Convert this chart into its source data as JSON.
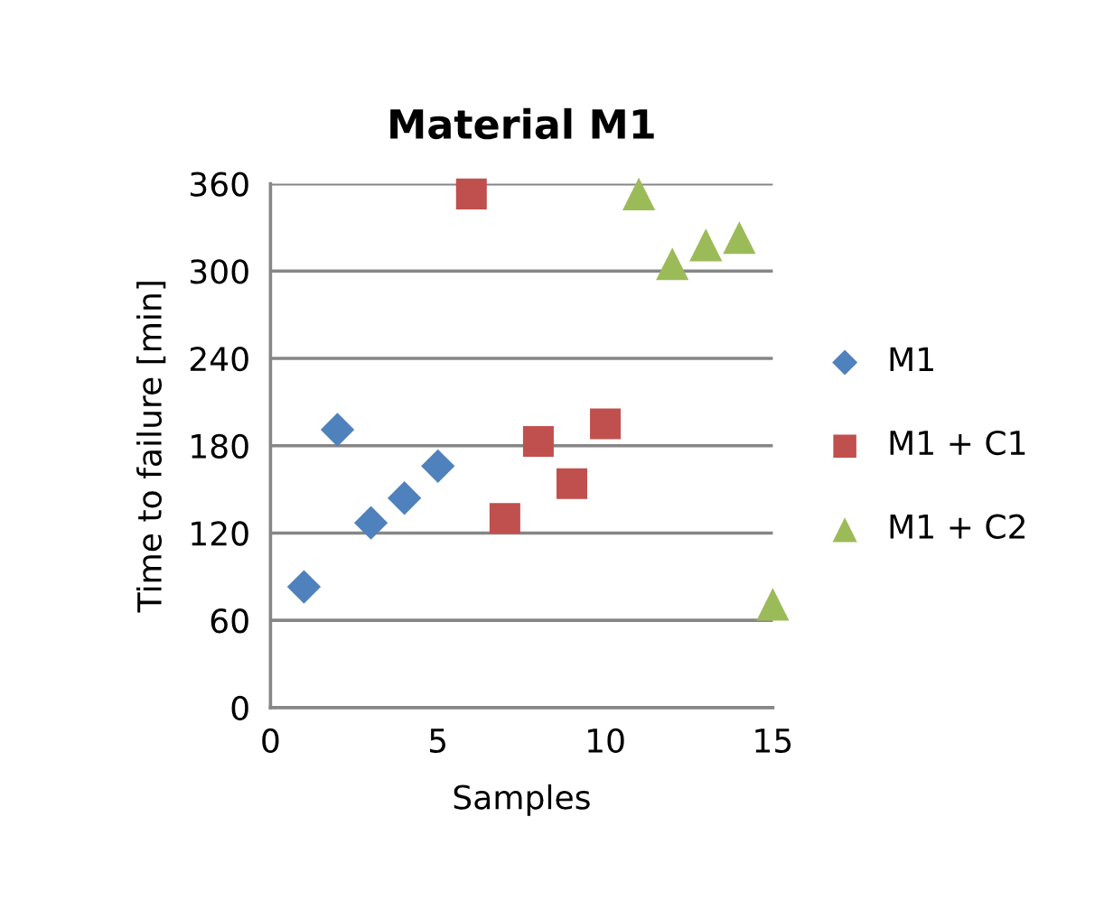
{
  "chart_data": {
    "type": "scatter",
    "title": "Material M1",
    "xlabel": "Samples",
    "ylabel": "Time to failure [min]",
    "xlim": [
      0,
      15
    ],
    "xticks": [
      0,
      5,
      10,
      15
    ],
    "ylim": [
      0,
      360
    ],
    "yticks": [
      0,
      60,
      120,
      180,
      240,
      300,
      360
    ],
    "grid": "y",
    "legend": "right",
    "series": [
      {
        "name": "M1",
        "color": "#4f81bd",
        "marker": "diamond",
        "x": [
          1,
          2,
          3,
          4,
          5
        ],
        "values": [
          83,
          191,
          127,
          144,
          166
        ]
      },
      {
        "name": "M1 + C1",
        "color": "#c0504d",
        "marker": "square",
        "x": [
          6,
          7,
          8,
          9,
          10
        ],
        "values": [
          353,
          130,
          183,
          154,
          195
        ]
      },
      {
        "name": "M1 + C2",
        "color": "#9bbb59",
        "marker": "triangle",
        "x": [
          11,
          12,
          13,
          14,
          15
        ],
        "values": [
          353,
          305,
          318,
          323,
          71
        ]
      }
    ]
  }
}
